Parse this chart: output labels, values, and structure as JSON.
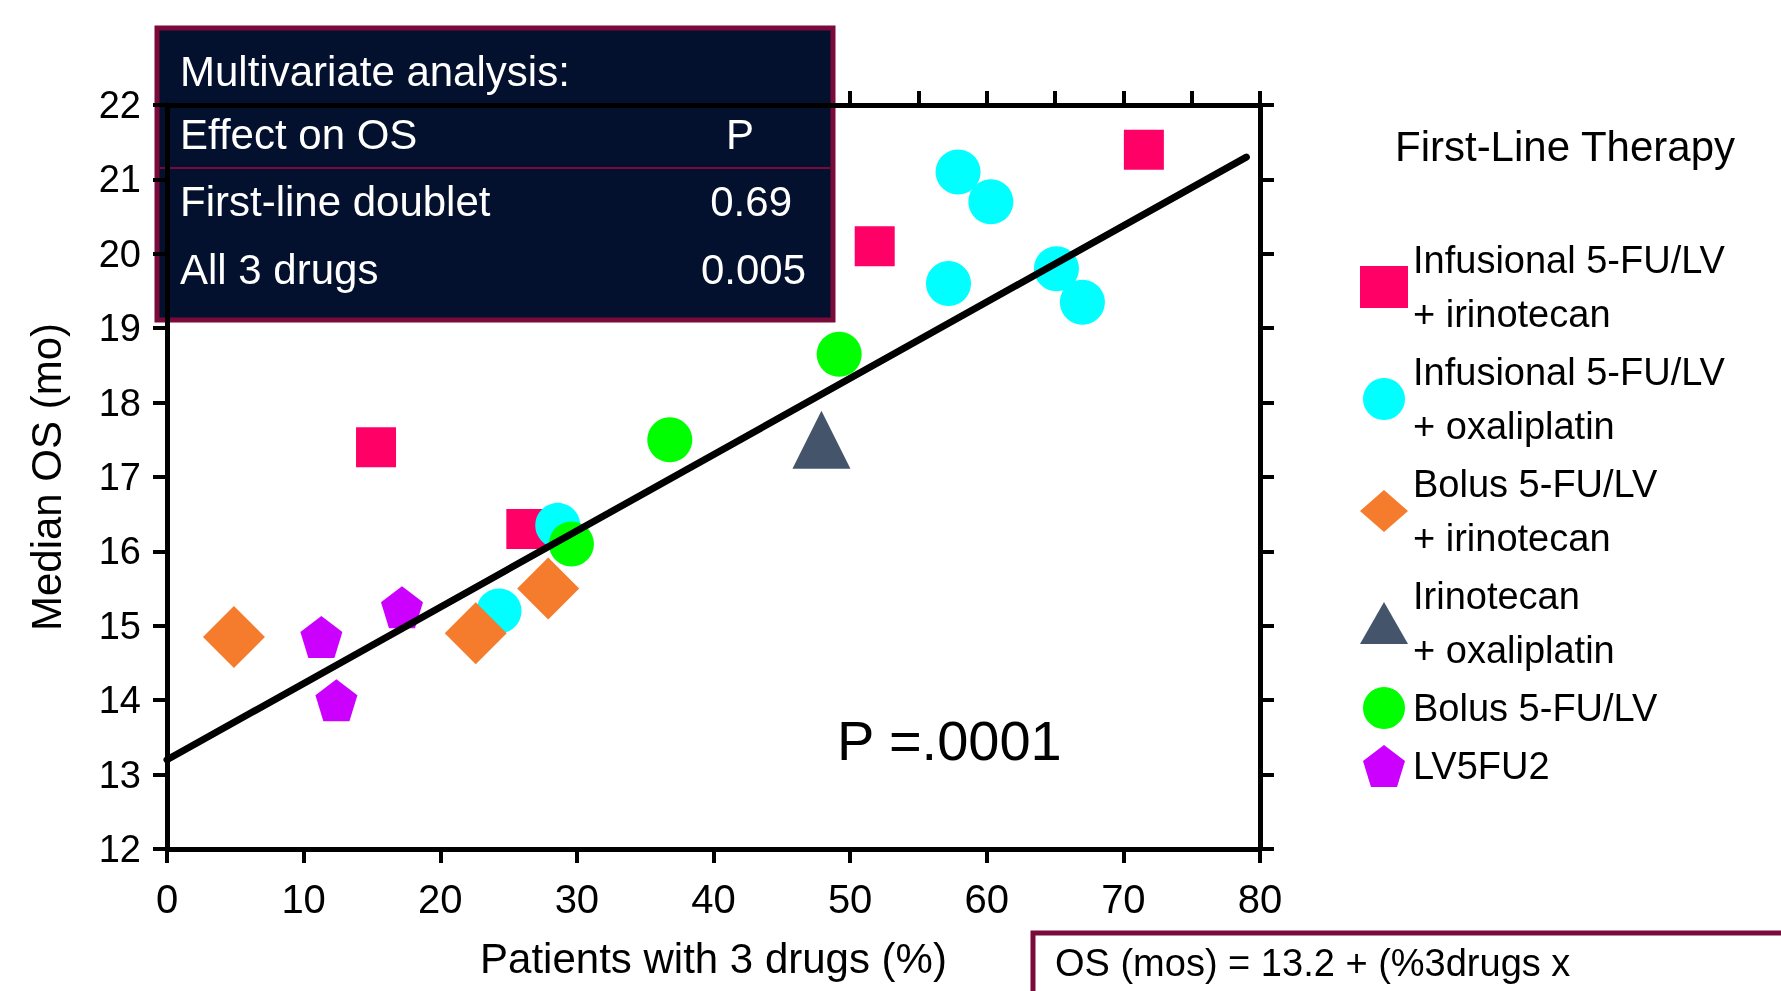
{
  "chart_data": {
    "type": "scatter",
    "xlabel": "Patients with 3 drugs (%)",
    "ylabel": "Median OS (mo)",
    "legend_title": "First-Line Therapy",
    "xlim": [
      0,
      80
    ],
    "xticks": [
      0,
      10,
      20,
      30,
      40,
      50,
      60,
      70,
      80
    ],
    "ylim": [
      12,
      22
    ],
    "yticks": [
      12,
      13,
      14,
      15,
      16,
      17,
      18,
      19,
      20,
      21,
      22
    ],
    "grid": false,
    "legend": "right",
    "series": [
      {
        "name": "Infusional 5-FU/LV\n+ irinotecan",
        "color": "#ff0066",
        "marker": "square",
        "x": [
          15.3,
          26.3,
          51.8,
          71.5
        ],
        "values": [
          17.4,
          16.3,
          20.1,
          21.4
        ]
      },
      {
        "name": "Infusional 5-FU/LV\n+ oxaliplatin",
        "color": "#00ffff",
        "marker": "circle",
        "x": [
          57.9,
          60.3,
          57.2,
          65.1,
          67.0,
          24.3,
          28.6
        ],
        "values": [
          21.1,
          20.7,
          19.6,
          19.8,
          19.35,
          15.2,
          16.35
        ]
      },
      {
        "name": "Bolus 5-FU/LV\n+ irinotecan",
        "color": "#f47c2c",
        "marker": "diamond",
        "x": [
          4.9,
          22.6,
          27.9
        ],
        "values": [
          14.85,
          14.9,
          15.5
        ]
      },
      {
        "name": "Irinotecan\n+ oxaliplatin",
        "color": "#44546a",
        "marker": "triangle",
        "x": [
          47.9
        ],
        "values": [
          17.5
        ]
      },
      {
        "name": "Bolus 5-FU/LV",
        "color": "#00ff00",
        "marker": "circle",
        "x": [
          36.8,
          29.6,
          49.2
        ],
        "values": [
          17.5,
          16.1,
          18.65
        ]
      },
      {
        "name": "LV5FU2",
        "color": "#cc00ff",
        "x": [
          11.3,
          17.2,
          12.4
        ],
        "values": [
          14.85,
          15.25,
          14.0
        ]
      },
      {
        "type": "line",
        "color": "#000000",
        "marker": "none",
        "line_style": "solid",
        "x": [
          0,
          79
        ],
        "values": [
          13.2,
          21.3
        ]
      }
    ],
    "annotations": [
      "Multivariate analysis:",
      "Effect on OS",
      "P",
      "First-line doublet",
      "0.69",
      "All 3 drugs",
      "0.005",
      "P =.0001",
      "OS (mos) = 13.2 + (%3drugs x"
    ]
  }
}
